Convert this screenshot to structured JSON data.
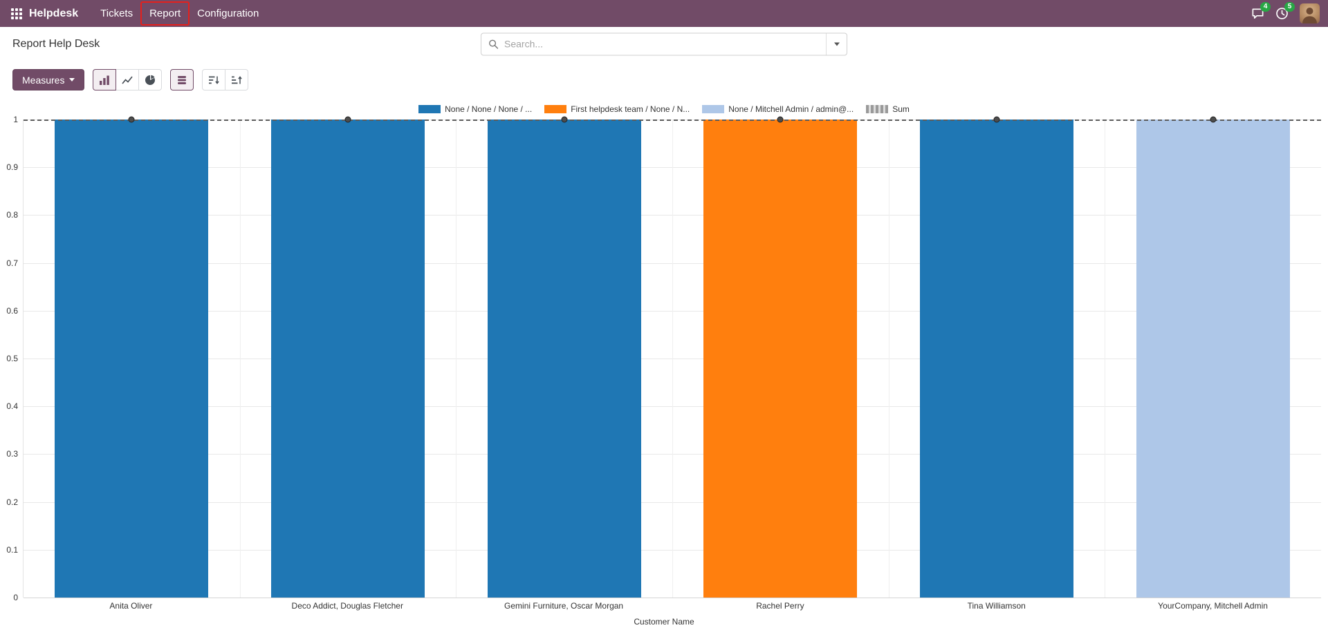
{
  "navbar": {
    "brand": "Helpdesk",
    "menu_items": [
      {
        "label": "Tickets",
        "highlighted": false
      },
      {
        "label": "Report",
        "highlighted": true
      },
      {
        "label": "Configuration",
        "highlighted": false
      }
    ],
    "systray": {
      "messages_badge": "4",
      "activities_badge": "5"
    }
  },
  "control_panel": {
    "title": "Report Help Desk",
    "search_placeholder": "Search..."
  },
  "toolbar": {
    "measures_label": "Measures",
    "buttons": [
      {
        "name": "bar-chart",
        "active": true
      },
      {
        "name": "line-chart",
        "active": false
      },
      {
        "name": "pie-chart",
        "active": false
      },
      {
        "name": "stacked",
        "active": true
      },
      {
        "name": "sort-descending",
        "active": false
      },
      {
        "name": "sort-ascending",
        "active": false
      }
    ]
  },
  "icons": {
    "apps": "grid-3x3-dots",
    "search": "magnifier",
    "search_toggle": "chevron-down",
    "messages": "chat-bubble",
    "activities": "clock",
    "avatar": "user-photo"
  },
  "colors": {
    "navbar_bg": "#714B67",
    "primary": "#714B67",
    "badge_green": "#28a745",
    "annotation_red": "#e5201d",
    "bar_blue": "#1f77b4",
    "bar_orange": "#ff7f0e",
    "bar_lightblue": "#aec7e8"
  },
  "chart_data": {
    "type": "bar",
    "stacked": true,
    "title": "",
    "xlabel": "Customer Name",
    "ylabel": "",
    "ylim": [
      0,
      1
    ],
    "yticks": [
      0,
      0.1,
      0.2,
      0.3,
      0.4,
      0.5,
      0.6,
      0.7,
      0.8,
      0.9,
      1
    ],
    "grid": true,
    "legend_position": "top",
    "categories": [
      "Anita Oliver",
      "Deco Addict, Douglas Fletcher",
      "Gemini Furniture, Oscar Morgan",
      "Rachel Perry",
      "Tina Williamson",
      "YourCompany, Mitchell Admin"
    ],
    "series": [
      {
        "name": "None / None / None / ...",
        "color": "#1f77b4",
        "values": [
          1,
          1,
          1,
          0,
          1,
          0
        ]
      },
      {
        "name": "First helpdesk team / None / N...",
        "color": "#ff7f0e",
        "values": [
          0,
          0,
          0,
          1,
          0,
          0
        ]
      },
      {
        "name": "None / Mitchell Admin / admin@...",
        "color": "#aec7e8",
        "values": [
          0,
          0,
          0,
          0,
          0,
          1
        ]
      }
    ],
    "sum": {
      "name": "Sum",
      "style": "dashed-line",
      "values": [
        1,
        1,
        1,
        1,
        1,
        1
      ]
    }
  }
}
